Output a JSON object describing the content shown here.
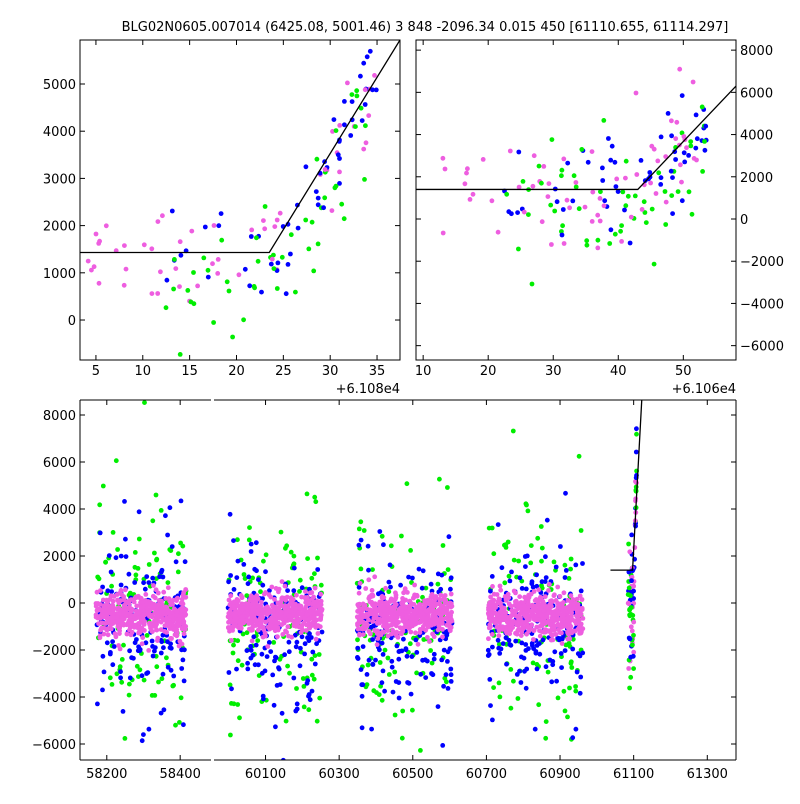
{
  "chart_data": {
    "type": "scatter",
    "title": "BLG02N0605.007014 (6425.08, 5001.46)    3 848 -2096.34 0.015 450 [61110.655, 61114.297]",
    "colors": {
      "magenta": "#ee5ee0",
      "blue": "#0000ff",
      "green": "#00ee00",
      "fit": "#000000"
    },
    "panels": [
      {
        "name": "top-left-zoom",
        "xlim": [
          3.3,
          37.45
        ],
        "ylim": [
          -847,
          5932
        ],
        "xticks": [
          5,
          10,
          15,
          20,
          25,
          30,
          35
        ],
        "xticklabels": [
          "5",
          "10",
          "15",
          "20",
          "25",
          "30",
          "35"
        ],
        "yticks": [
          0,
          1000,
          2000,
          3000,
          4000,
          5000
        ],
        "yticklabels": [
          "0",
          "1000",
          "2000",
          "3000",
          "4000",
          "5000"
        ],
        "ytick_side": "left",
        "offset_label": "+6.108e4",
        "fit": [
          [
            3.3,
            1430
          ],
          [
            23.5,
            1430
          ],
          [
            37.45,
            5932
          ]
        ],
        "scatter": {
          "xrange": [
            4,
            35
          ],
          "break": 23.5,
          "base": 1430,
          "slope": 323,
          "n": 160
        }
      },
      {
        "name": "top-right-zoom",
        "xlim": [
          8.9,
          58.1
        ],
        "ylim": [
          -6680,
          8480
        ],
        "xticks": [
          10,
          20,
          30,
          40,
          50
        ],
        "xticklabels": [
          "10",
          "20",
          "30",
          "40",
          "50"
        ],
        "yticks": [
          -6000,
          -4000,
          -2000,
          0,
          2000,
          4000,
          6000,
          8000
        ],
        "yticklabels": [
          "−6000",
          "−4000",
          "−2000",
          "0",
          "2000",
          "4000",
          "6000",
          "8000"
        ],
        "ytick_side": "right",
        "offset_label": "+6.106e4",
        "fit": [
          [
            8.9,
            1400
          ],
          [
            43,
            1400
          ],
          [
            58.1,
            6300
          ]
        ],
        "scatter": {
          "xrange": [
            12,
            54
          ],
          "break": 43,
          "base": 1400,
          "slope": 327,
          "n": 190
        }
      }
    ],
    "bottom": {
      "name": "full-light-curve",
      "segments": [
        {
          "xlim": [
            58127,
            58484
          ],
          "xticks": [
            58200,
            58400
          ],
          "xticklabels": [
            "58200",
            "58400"
          ]
        },
        {
          "xlim": [
            59960,
            61378
          ],
          "xticks": [
            60100,
            60300,
            60500,
            60700,
            60900,
            61100,
            61300
          ],
          "xticklabels": [
            "60100",
            "60300",
            "60500",
            "60700",
            "60900",
            "61100",
            "61300"
          ]
        }
      ],
      "ylim": [
        -6681,
        8638
      ],
      "yticks": [
        -6000,
        -4000,
        -2000,
        0,
        2000,
        4000,
        6000,
        8000
      ],
      "yticklabels": [
        "−6000",
        "−4000",
        "−2000",
        "0",
        "2000",
        "4000",
        "6000",
        "8000"
      ],
      "seasons": [
        [
          58170,
          58416
        ],
        [
          59998,
          60254
        ],
        [
          60349,
          60607
        ],
        [
          60705,
          60963
        ]
      ],
      "season_stats": {
        "magenta": {
          "mean": -500,
          "sd": 450,
          "n": 500
        },
        "blue": {
          "mean": -1100,
          "sd": 1500,
          "n": 170
        },
        "green": {
          "mean": -700,
          "sd": 2100,
          "n": 110
        }
      },
      "event": {
        "xrange": [
          61085,
          61108
        ],
        "base": 1400,
        "peak_x": 61112
      },
      "fit": [
        [
          61037,
          1400
        ],
        [
          61097,
          1400
        ],
        [
          61122,
          8638
        ]
      ]
    }
  }
}
